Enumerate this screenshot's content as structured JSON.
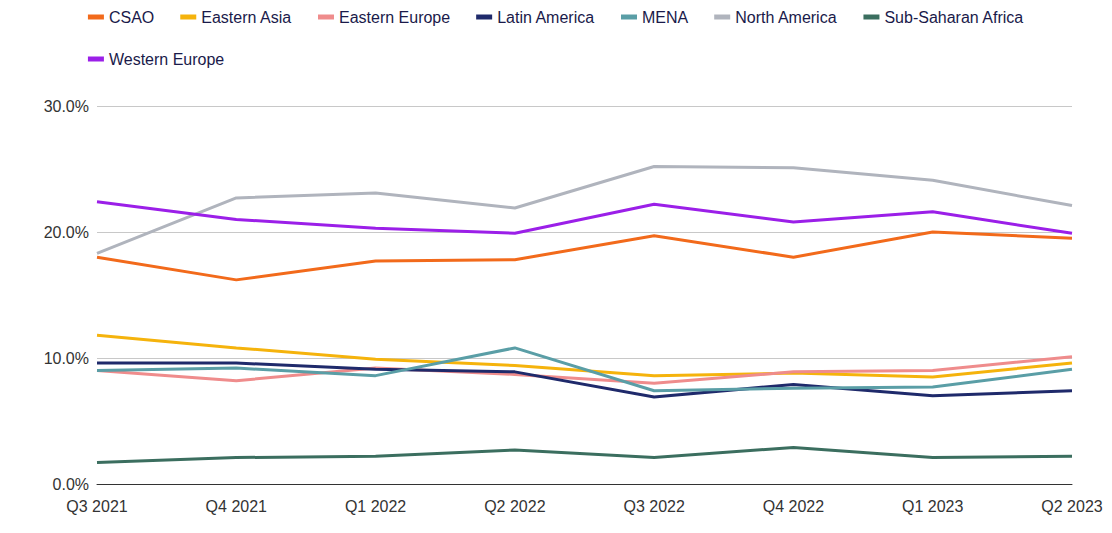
{
  "chart_data": {
    "type": "line",
    "categories": [
      "Q3 2021",
      "Q4 2021",
      "Q1 2022",
      "Q2 2022",
      "Q3 2022",
      "Q4 2022",
      "Q1 2023",
      "Q2 2023"
    ],
    "series": [
      {
        "name": "CSAO",
        "color": "#f26a1b",
        "values": [
          18.0,
          16.2,
          17.7,
          17.8,
          19.7,
          18.0,
          20.0,
          19.5
        ]
      },
      {
        "name": "Eastern Asia",
        "color": "#f5b30c",
        "values": [
          11.8,
          10.8,
          9.9,
          9.4,
          8.6,
          8.8,
          8.5,
          9.6
        ]
      },
      {
        "name": "Eastern Europe",
        "color": "#ef8c8c",
        "values": [
          9.0,
          8.2,
          9.2,
          8.7,
          8.0,
          8.9,
          9.0,
          10.1
        ]
      },
      {
        "name": "Latin America",
        "color": "#1f2a6b",
        "values": [
          9.6,
          9.6,
          9.1,
          8.9,
          6.9,
          7.9,
          7.0,
          7.4
        ]
      },
      {
        "name": "MENA",
        "color": "#5a9ea6",
        "values": [
          9.0,
          9.2,
          8.6,
          10.8,
          7.4,
          7.6,
          7.7,
          9.1
        ]
      },
      {
        "name": "North America",
        "color": "#b0b4bd",
        "values": [
          18.3,
          22.7,
          23.1,
          21.9,
          25.2,
          25.1,
          24.1,
          22.1
        ]
      },
      {
        "name": "Sub-Saharan Africa",
        "color": "#3b6e5f",
        "values": [
          1.7,
          2.1,
          2.2,
          2.7,
          2.1,
          2.9,
          2.1,
          2.2
        ]
      },
      {
        "name": "Western Europe",
        "color": "#9b1fe8",
        "values": [
          22.4,
          21.0,
          20.3,
          19.9,
          22.2,
          20.8,
          21.6,
          19.9
        ]
      }
    ],
    "ylim": [
      0,
      30
    ],
    "yticks": [
      {
        "value": 0,
        "label": "0.0%"
      },
      {
        "value": 10,
        "label": "10.0%"
      },
      {
        "value": 20,
        "label": "20.0%"
      },
      {
        "value": 30,
        "label": "30.0%"
      }
    ],
    "grid": true,
    "legend": "top",
    "line_style": "solid"
  }
}
